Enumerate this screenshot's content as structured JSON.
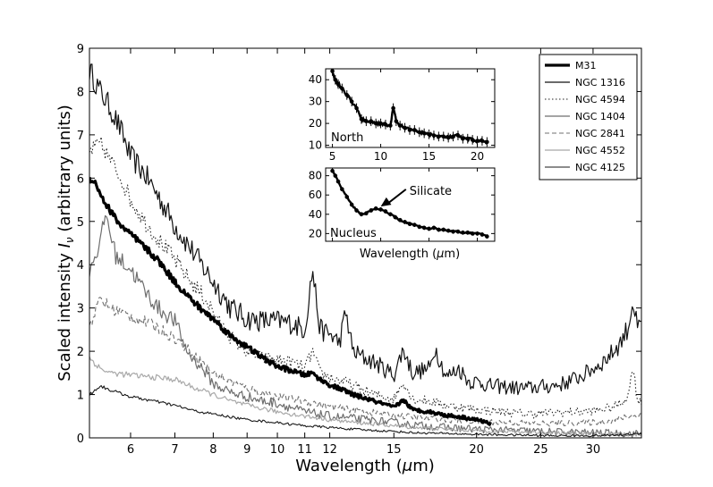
{
  "chart_data": {
    "type": "line",
    "main": {
      "xlabel_prefix": "Wavelength (",
      "xlabel_unit": "μ",
      "xlabel_suffix": "m)",
      "ylabel_prefix": "Scaled intensity ",
      "ylabel_symbol": "I",
      "ylabel_sub": "ν",
      "ylabel_suffix": " (arbitrary units)",
      "xscale": "log",
      "xlim": [
        5.2,
        35.5
      ],
      "ylim": [
        0,
        9
      ],
      "xticks": [
        6,
        7,
        8,
        9,
        10,
        11,
        12,
        15,
        20,
        25,
        30
      ],
      "yticks": [
        0,
        1,
        2,
        3,
        4,
        5,
        6,
        7,
        8,
        9
      ],
      "legend_position": "top-right",
      "series": [
        {
          "name": "M31",
          "color": "#000000",
          "dash": "",
          "width": 3.2,
          "x": [
            5.2,
            5.3,
            5.5,
            5.8,
            6.0,
            6.3,
            6.6,
            7.0,
            7.4,
            7.7,
            8.0,
            8.5,
            9.0,
            9.5,
            10.0,
            10.5,
            11.0,
            11.3,
            11.6,
            12.0,
            12.6,
            13.0,
            14.0,
            15.0,
            15.5,
            16.0,
            17.0,
            18.0,
            19.0,
            20.0,
            21.0
          ],
          "y": [
            6.0,
            5.9,
            5.4,
            4.9,
            4.7,
            4.4,
            4.1,
            3.6,
            3.2,
            2.95,
            2.75,
            2.35,
            2.1,
            1.85,
            1.65,
            1.55,
            1.45,
            1.5,
            1.35,
            1.22,
            1.1,
            1.0,
            0.85,
            0.7,
            0.88,
            0.65,
            0.6,
            0.52,
            0.48,
            0.42,
            0.33
          ],
          "noise": 0.08
        },
        {
          "name": "NGC 1316",
          "color": "#111111",
          "dash": "",
          "width": 1.2,
          "x": [
            5.2,
            5.4,
            5.6,
            5.8,
            6.0,
            6.3,
            6.6,
            7.0,
            7.3,
            7.6,
            8.0,
            8.5,
            9.0,
            9.5,
            10.0,
            10.5,
            11.0,
            11.3,
            11.6,
            12.0,
            12.4,
            12.7,
            13.0,
            13.5,
            14.0,
            15.0,
            15.5,
            16.0,
            17.0,
            17.3,
            18.0,
            18.8,
            19.5,
            20.0,
            21.0,
            22.0,
            23.0,
            24.0,
            25.0,
            26.0,
            27.0,
            28.0,
            29.0,
            30.0,
            31.0,
            32.0,
            33.0,
            34.0,
            34.4,
            35.0,
            35.5
          ],
          "y": [
            8.5,
            8.0,
            7.6,
            7.1,
            6.5,
            6.1,
            5.6,
            4.9,
            4.5,
            4.1,
            3.6,
            3.0,
            2.75,
            2.7,
            2.7,
            2.65,
            2.5,
            3.9,
            2.5,
            2.4,
            2.2,
            2.9,
            2.0,
            1.85,
            1.75,
            1.45,
            2.05,
            1.5,
            1.6,
            2.1,
            1.4,
            1.6,
            1.3,
            1.3,
            1.2,
            1.18,
            1.15,
            1.15,
            1.18,
            1.2,
            1.25,
            1.35,
            1.45,
            1.6,
            1.75,
            1.95,
            2.2,
            2.6,
            3.2,
            2.5,
            2.6
          ],
          "noise": 0.28
        },
        {
          "name": "NGC 4594",
          "color": "#222222",
          "dash": "1.5 2.5",
          "width": 1.1,
          "x": [
            5.2,
            5.4,
            5.6,
            5.8,
            6.0,
            6.3,
            6.6,
            7.0,
            7.4,
            7.8,
            8.2,
            8.6,
            9.0,
            9.5,
            10.0,
            10.5,
            11.0,
            11.3,
            11.6,
            12.0,
            12.6,
            13.0,
            14.0,
            15.0,
            15.5,
            16.0,
            17.0,
            18.0,
            19.0,
            20.0,
            22.0,
            24.0,
            26.0,
            28.0,
            30.0,
            32.0,
            33.0,
            34.0,
            34.4,
            35.0,
            35.5
          ],
          "y": [
            6.6,
            6.8,
            6.4,
            6.0,
            5.5,
            5.0,
            4.6,
            4.1,
            3.6,
            3.2,
            2.6,
            2.25,
            2.0,
            1.85,
            1.8,
            1.75,
            1.6,
            2.0,
            1.5,
            1.4,
            1.3,
            1.2,
            1.0,
            0.9,
            1.3,
            0.9,
            0.85,
            0.75,
            0.7,
            0.65,
            0.6,
            0.55,
            0.58,
            0.6,
            0.62,
            0.7,
            0.8,
            1.0,
            1.7,
            0.9,
            0.8
          ],
          "noise": 0.2
        },
        {
          "name": "NGC 1404",
          "color": "#6e6e6e",
          "dash": "",
          "width": 1.2,
          "x": [
            5.2,
            5.3,
            5.4,
            5.5,
            5.7,
            6.0,
            6.3,
            6.6,
            7.0,
            7.3,
            7.5,
            7.8,
            8.0,
            8.5,
            9.0,
            9.5,
            10.0,
            10.5,
            11.0,
            11.5,
            12.0,
            13.0,
            14.0,
            15.0,
            16.0,
            17.0,
            18.0,
            20.0,
            22.0,
            24.0,
            26.0,
            28.0,
            30.0,
            32.0,
            34.0,
            35.5
          ],
          "y": [
            3.9,
            4.2,
            4.5,
            5.2,
            4.2,
            3.9,
            3.4,
            3.0,
            2.7,
            2.0,
            1.8,
            1.5,
            1.25,
            1.05,
            0.95,
            0.85,
            0.8,
            0.7,
            0.6,
            0.55,
            0.5,
            0.45,
            0.4,
            0.35,
            0.3,
            0.27,
            0.24,
            0.2,
            0.18,
            0.16,
            0.14,
            0.13,
            0.12,
            0.11,
            0.1,
            0.1
          ],
          "noise": 0.2
        },
        {
          "name": "NGC 2841",
          "color": "#707070",
          "dash": "5 3",
          "width": 1.1,
          "x": [
            5.2,
            5.4,
            5.6,
            6.0,
            6.5,
            7.0,
            7.5,
            8.0,
            8.5,
            9.0,
            9.5,
            10.0,
            11.0,
            12.0,
            13.0,
            14.0,
            15.0,
            16.0,
            18.0,
            20.0,
            22.0,
            24.0,
            26.0,
            28.0,
            30.0,
            32.0,
            33.0,
            34.0,
            35.5
          ],
          "y": [
            2.6,
            3.2,
            3.0,
            2.8,
            2.6,
            2.3,
            1.9,
            1.5,
            1.3,
            1.15,
            1.05,
            0.95,
            0.85,
            0.72,
            0.65,
            0.58,
            0.52,
            0.48,
            0.42,
            0.38,
            0.36,
            0.34,
            0.33,
            0.34,
            0.36,
            0.4,
            0.45,
            0.5,
            0.55
          ],
          "noise": 0.15
        },
        {
          "name": "NGC 4552",
          "color": "#a8a8a8",
          "dash": "",
          "width": 1.2,
          "x": [
            5.2,
            5.4,
            5.6,
            6.0,
            6.5,
            7.0,
            7.5,
            8.0,
            8.5,
            9.0,
            10.0,
            11.0,
            12.0,
            13.0,
            14.0,
            15.0,
            16.0,
            18.0,
            20.0,
            22.0,
            24.0,
            26.0,
            28.0,
            30.0,
            32.0,
            34.0,
            35.5
          ],
          "y": [
            1.85,
            1.6,
            1.5,
            1.45,
            1.4,
            1.35,
            1.15,
            1.0,
            0.85,
            0.75,
            0.6,
            0.5,
            0.42,
            0.36,
            0.32,
            0.28,
            0.25,
            0.2,
            0.17,
            0.15,
            0.13,
            0.12,
            0.11,
            0.1,
            0.09,
            0.08,
            0.07
          ],
          "noise": 0.1
        },
        {
          "name": "NGC 4125",
          "color": "#1a1a1a",
          "dash": "",
          "width": 1.1,
          "x": [
            5.2,
            5.4,
            5.6,
            6.0,
            6.5,
            7.0,
            7.5,
            8.0,
            8.5,
            9.0,
            10.0,
            11.0,
            12.0,
            13.0,
            14.0,
            15.0,
            16.0,
            18.0,
            20.0,
            22.0,
            24.0,
            26.0,
            28.0,
            30.0,
            32.0,
            34.0,
            35.5
          ],
          "y": [
            1.0,
            1.2,
            1.1,
            0.95,
            0.85,
            0.75,
            0.62,
            0.55,
            0.48,
            0.42,
            0.35,
            0.28,
            0.24,
            0.2,
            0.17,
            0.15,
            0.12,
            0.1,
            0.08,
            0.07,
            0.06,
            0.05,
            0.05,
            0.05,
            0.06,
            0.08,
            0.1
          ],
          "noise": 0.06
        }
      ]
    },
    "inset_north": {
      "label": "North",
      "xlim": [
        4.3,
        21.8
      ],
      "ylim": [
        9,
        45
      ],
      "xticks": [
        5,
        10,
        15,
        20
      ],
      "yticks": [
        10,
        20,
        30,
        40
      ],
      "x": [
        5.0,
        5.3,
        5.6,
        6.0,
        6.5,
        7.0,
        7.5,
        8.0,
        8.5,
        9.0,
        9.5,
        10.0,
        10.5,
        11.0,
        11.3,
        11.6,
        12.0,
        12.5,
        13.0,
        13.5,
        14.0,
        14.5,
        15.0,
        15.5,
        16.0,
        16.5,
        17.0,
        17.5,
        18.0,
        18.5,
        19.0,
        19.5,
        20.0,
        20.5,
        21.0
      ],
      "y": [
        44,
        40,
        38,
        36,
        33,
        30,
        27,
        22,
        21,
        21,
        20,
        20,
        19.5,
        19,
        27,
        21,
        19,
        18,
        17,
        17,
        16,
        15.5,
        15,
        14.5,
        14,
        14,
        13.5,
        14,
        14.5,
        13,
        13,
        12.5,
        12,
        12,
        11.5
      ]
    },
    "inset_nucleus": {
      "label": "Nucleus",
      "annotation": "Silicate",
      "annotation_xy": [
        10.0,
        48
      ],
      "annotation_text_xy": [
        16.5,
        64
      ],
      "xlabel_prefix": "Wavelength (",
      "xlabel_unit": "μ",
      "xlabel_suffix": "m)",
      "xlim": [
        4.3,
        21.8
      ],
      "ylim": [
        12,
        88
      ],
      "xticks": [
        5,
        10,
        15,
        20
      ],
      "yticks": [
        20,
        40,
        60,
        80
      ],
      "x": [
        5.0,
        5.3,
        5.6,
        6.0,
        6.5,
        7.0,
        7.5,
        8.0,
        8.5,
        9.0,
        9.5,
        10.0,
        10.5,
        11.0,
        11.5,
        12.0,
        12.5,
        13.0,
        13.5,
        14.0,
        14.5,
        15.0,
        15.5,
        16.0,
        16.5,
        17.0,
        17.5,
        18.0,
        18.5,
        19.0,
        19.5,
        20.0,
        20.5,
        21.0
      ],
      "y": [
        85,
        80,
        74,
        66,
        58,
        50,
        44,
        40,
        41,
        44,
        46,
        45,
        43,
        40,
        37,
        34,
        32,
        30,
        29,
        27,
        26,
        25,
        26,
        24,
        24,
        23,
        22,
        22,
        21,
        21,
        20,
        20,
        19,
        17
      ]
    }
  }
}
